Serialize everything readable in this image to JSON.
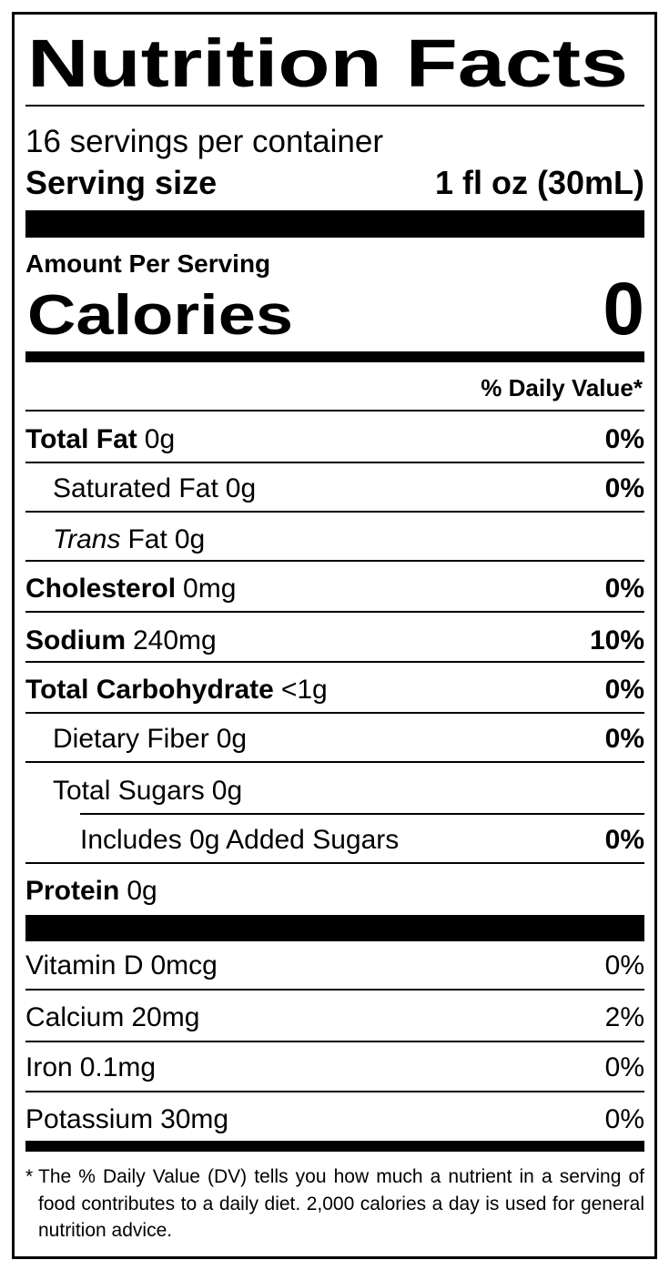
{
  "title": "Nutrition Facts",
  "servings_per_container": "16 servings per container",
  "serving_size": {
    "label": "Serving size",
    "value": "1 fl oz (30mL)"
  },
  "amount_per_serving": "Amount Per Serving",
  "calories": {
    "label": "Calories",
    "value": "0"
  },
  "daily_value_header": "% Daily Value*",
  "nutrients": [
    {
      "name": "Total Fat",
      "amount": "0g",
      "dv": "0%"
    },
    {
      "name": "Saturated Fat",
      "amount": "0g",
      "dv": "0%"
    },
    {
      "name_italic": "Trans",
      "name": "Fat",
      "amount": "0g"
    },
    {
      "name": "Cholesterol",
      "amount": "0mg",
      "dv": "0%"
    },
    {
      "name": "Sodium",
      "amount": "240mg",
      "dv": "10%"
    },
    {
      "name": "Total Carbohydrate",
      "amount": "<1g",
      "dv": "0%"
    },
    {
      "name": "Dietary Fiber",
      "amount": "0g",
      "dv": "0%"
    },
    {
      "name": "Total Sugars",
      "amount": "0g"
    },
    {
      "name": "Includes 0g Added Sugars",
      "dv": "0%"
    },
    {
      "name": "Protein",
      "amount": "0g"
    }
  ],
  "vitamins": [
    {
      "name": "Vitamin D",
      "amount": "0mcg",
      "dv": "0%"
    },
    {
      "name": "Calcium",
      "amount": "20mg",
      "dv": "2%"
    },
    {
      "name": "Iron",
      "amount": "0.1mg",
      "dv": "0%"
    },
    {
      "name": "Potassium",
      "amount": "30mg",
      "dv": "0%"
    }
  ],
  "footnote": {
    "marker": "*",
    "text": "The % Daily Value (DV) tells you how much a nutrient in a serving of food contributes to a daily diet. 2,000 calories a day is used for general nutrition advice."
  }
}
